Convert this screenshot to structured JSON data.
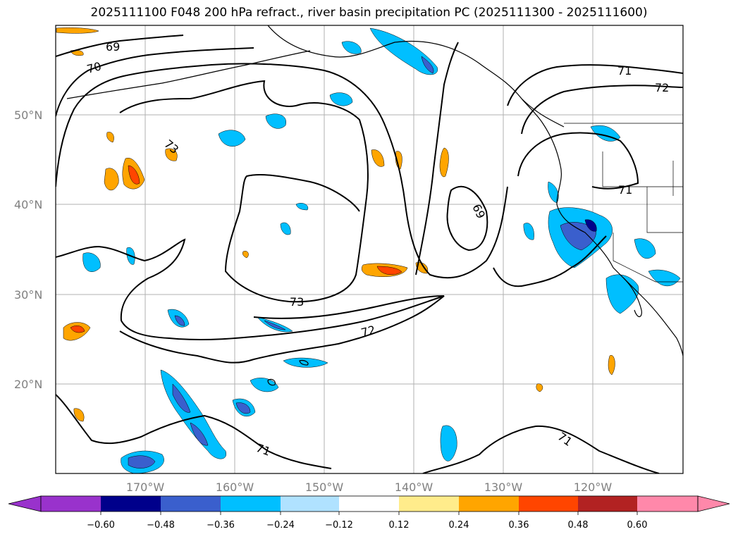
{
  "title": "2025111100 F048 200 hPa refract., river basin precipitation PC (2025111300 - 2025111600)",
  "map": {
    "lat_ticks": [
      {
        "label": "50°N",
        "lat": 50
      },
      {
        "label": "40°N",
        "lat": 40
      },
      {
        "label": "30°N",
        "lat": 30
      },
      {
        "label": "20°N",
        "lat": 20
      }
    ],
    "lon_ticks": [
      {
        "label": "170°W",
        "lon": -170
      },
      {
        "label": "160°W",
        "lon": -160
      },
      {
        "label": "150°W",
        "lon": -150
      },
      {
        "label": "140°W",
        "lon": -140
      },
      {
        "label": "130°W",
        "lon": -130
      },
      {
        "label": "120°W",
        "lon": -120
      }
    ],
    "contour_labels": [
      "69",
      "70",
      "73",
      "73",
      "72",
      "69",
      "71",
      "72",
      "71",
      "71",
      "71"
    ],
    "colors": {
      "grid": "#b0b0b0",
      "coast": "#000000",
      "contour": "#000000"
    }
  },
  "colorbar": {
    "segments": [
      "#9932cc",
      "#00008b",
      "#3a5fcd",
      "#00bfff",
      "#b0e2ff",
      "#ffffff",
      "#ffec8b",
      "#ffa500",
      "#ff4500",
      "#b22222",
      "#ff88aa"
    ],
    "ticks": [
      "−0.60",
      "−0.48",
      "−0.36",
      "−0.24",
      "−0.12",
      "0.12",
      "0.24",
      "0.36",
      "0.48",
      "0.60"
    ]
  }
}
